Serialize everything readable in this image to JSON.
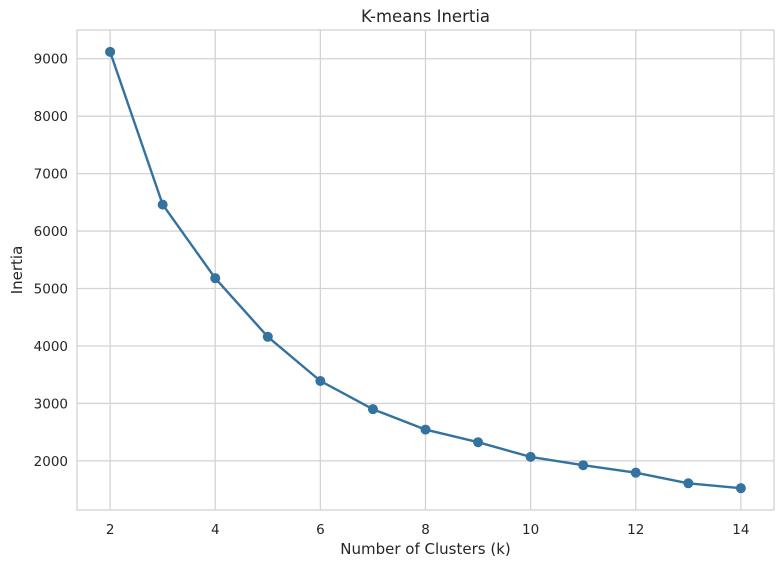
{
  "chart_data": {
    "type": "line",
    "title": "K-means Inertia",
    "xlabel": "Number of Clusters (k)",
    "ylabel": "Inertia",
    "x": [
      2,
      3,
      4,
      5,
      6,
      7,
      8,
      9,
      10,
      11,
      12,
      13,
      14
    ],
    "series": [
      {
        "values": [
          9120,
          6460,
          5180,
          4160,
          3390,
          2900,
          2545,
          2325,
          2070,
          1925,
          1795,
          1610,
          1525
        ]
      }
    ],
    "xticks": [
      2,
      4,
      6,
      8,
      10,
      12,
      14
    ],
    "yticks": [
      2000,
      3000,
      4000,
      5000,
      6000,
      7000,
      8000,
      9000
    ],
    "xlim": [
      1.37,
      14.63
    ],
    "ylim": [
      1145,
      9500
    ],
    "grid": true,
    "line_color": "#34729f",
    "grid_color": "#d3d3d3"
  }
}
